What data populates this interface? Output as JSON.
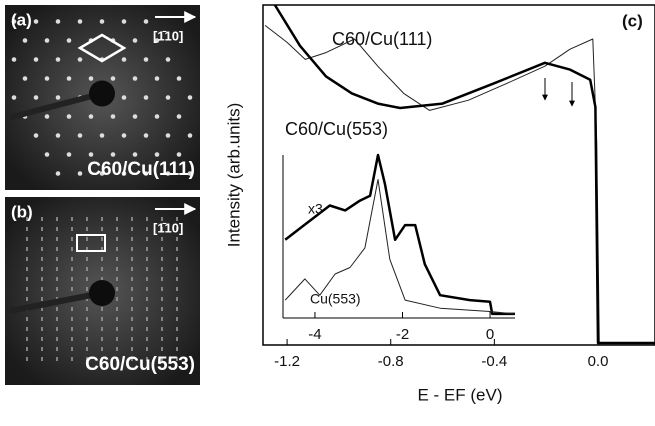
{
  "panels": [
    {
      "label": "(a)",
      "direction": "[1̄10]",
      "caption": "C60/Cu(111)"
    },
    {
      "label": "(b)",
      "direction": "[1̄10]",
      "caption": "C60/Cu(553)"
    }
  ],
  "chart_data": {
    "type": "line",
    "label": "(c)",
    "x_label": "E - EF (eV)",
    "y_label": "Intensity (arb.units)",
    "xlim": [
      -1.293,
      0.22
    ],
    "ylim": [
      0,
      100
    ],
    "xticks": [
      -1.2,
      -0.8,
      -0.4,
      {
        "value": 0,
        "label": "0.0"
      }
    ],
    "series": [
      {
        "name": "C60/Cu(111)",
        "color": "#222",
        "width": 1,
        "x": [
          -1.285,
          -1.2,
          -1.13,
          -1.05,
          -0.94,
          -0.85,
          -0.75,
          -0.65,
          -0.5,
          -0.35,
          -0.205,
          -0.108,
          -0.02,
          -0.005,
          0.005,
          0.22
        ],
        "values": [
          94,
          89,
          84,
          86,
          90,
          82,
          74,
          69,
          72,
          77,
          82,
          87,
          90,
          60,
          0.6,
          0.6
        ]
      },
      {
        "name": "C60/Cu(553)",
        "color": "#000",
        "width": 2.5,
        "x": [
          -1.247,
          -1.15,
          -1.05,
          -0.95,
          -0.85,
          -0.764,
          -0.6,
          -0.4,
          -0.205,
          -0.108,
          -0.03,
          -0.01,
          0,
          0.22
        ],
        "values": [
          100,
          88,
          79,
          74,
          71,
          69.7,
          71,
          77,
          83,
          81,
          78,
          70,
          0.6,
          0.6
        ]
      }
    ],
    "inset": {
      "xlim": [
        -4.73,
        0.57
      ],
      "ylim": [
        0,
        100
      ],
      "xticks": [
        -4,
        -2,
        0
      ],
      "series": [
        {
          "name": "x3",
          "color": "#000",
          "width": 2.5,
          "x": [
            -4.68,
            -4.34,
            -3.66,
            -3.31,
            -2.97,
            -2.74,
            -2.56,
            -2.4,
            -2.17,
            -1.94,
            -1.71,
            -1.49,
            -1.14,
            -0.46,
            0,
            0.05,
            0.57
          ],
          "values": [
            48,
            55,
            69,
            66,
            72,
            75,
            100,
            82,
            48,
            57,
            57,
            33,
            14,
            11,
            10,
            2.5,
            2.5
          ]
        },
        {
          "name": "Cu(553)",
          "color": "#222",
          "width": 1,
          "x": [
            -4.68,
            -4.23,
            -3.89,
            -3.54,
            -3.2,
            -2.86,
            -2.56,
            -2.29,
            -1.94,
            -1.14,
            0,
            0.57
          ],
          "values": [
            11,
            24,
            14,
            27,
            31,
            43,
            85,
            36,
            11,
            6,
            4,
            2.5
          ]
        }
      ]
    }
  }
}
